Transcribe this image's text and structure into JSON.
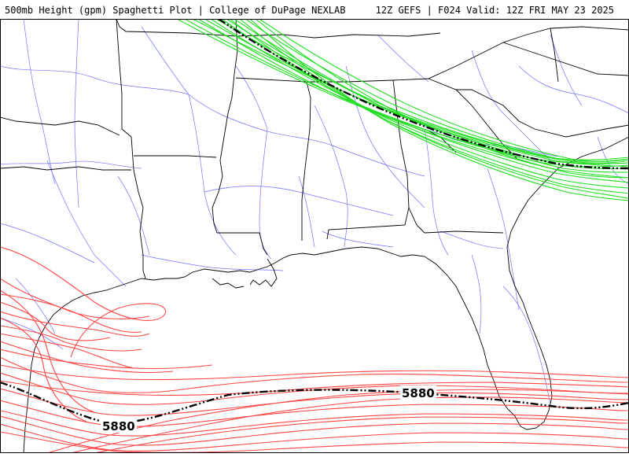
{
  "header": {
    "left_title": "500mb Height (gpm) Spaghetti Plot | College of DuPage NEXLAB",
    "right_title": "12Z GEFS | F024 Valid: 12Z FRI MAY 23 2025"
  },
  "map": {
    "region": "Southeastern United States and Gulf of Mexico",
    "colors": {
      "background": "#ffffff",
      "state_borders": "#000000",
      "roads": "#5a5aff",
      "northern_members": "#22dd22",
      "southern_members": "#ff4444",
      "ensemble_mean": "#000000"
    },
    "contour_labels": [
      {
        "text": "5880",
        "anchor": "southwest-gulf"
      },
      {
        "text": "5880",
        "anchor": "central-gulf"
      }
    ]
  }
}
